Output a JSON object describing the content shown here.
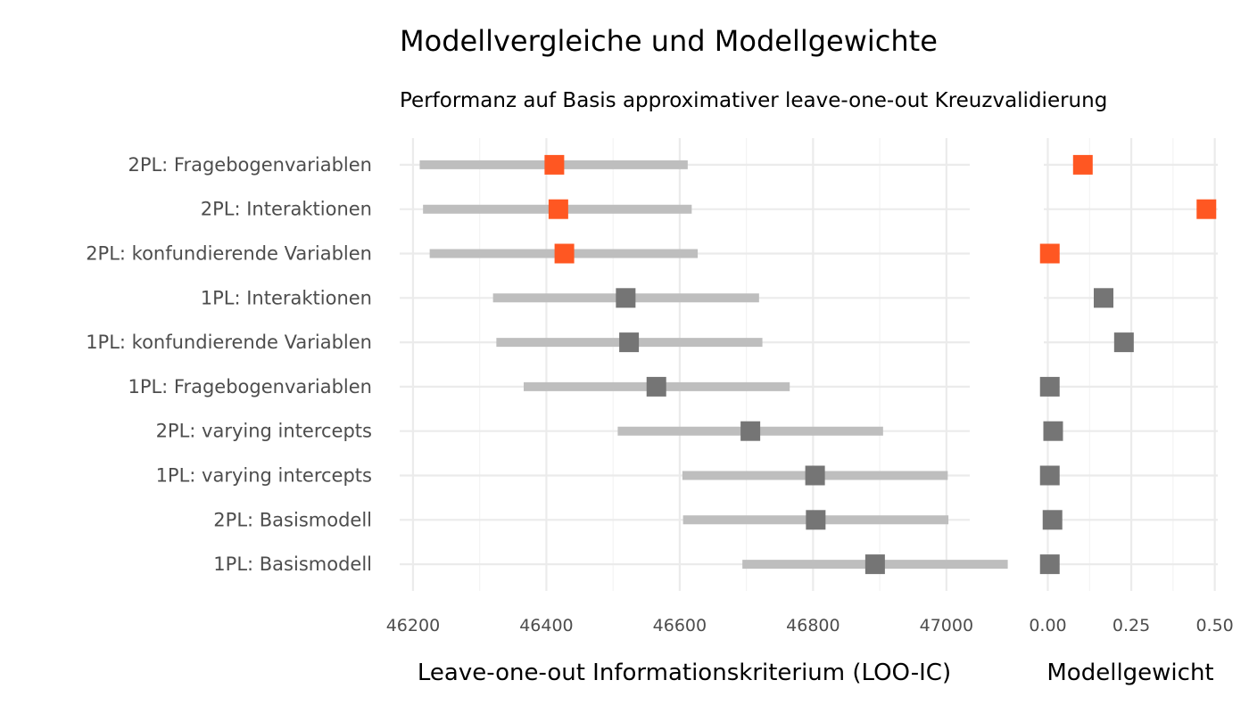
{
  "chart_data": {
    "type": "dot-interval",
    "title": "Modellvergleiche und Modellgewichte",
    "subtitle": "Performanz auf Basis approximativer leave-one-out Kreuzvalidierung",
    "categories": [
      "2PL: Fragebogenvariablen",
      "2PL: Interaktionen",
      "2PL: konfundierende Variablen",
      "1PL: Interaktionen",
      "1PL: konfundierende Variablen",
      "1PL: Fragebogenvariablen",
      "2PL: varying intercepts",
      "1PL: varying intercepts",
      "2PL: Basismodell",
      "1PL: Basismodell"
    ],
    "panels": [
      {
        "id": "looic",
        "xlabel": "Leave-one-out Informationskriterium (LOO-IC)",
        "xlim": [
          46180,
          47035
        ],
        "ticks": [
          46200,
          46400,
          46600,
          46800,
          47000
        ],
        "tick_labels": [
          "46200",
          "46400",
          "46600",
          "46800",
          "47000"
        ],
        "points": [
          {
            "estimate": 46412,
            "lower": 46210,
            "upper": 46612,
            "highlight": true
          },
          {
            "estimate": 46418,
            "lower": 46215,
            "upper": 46618,
            "highlight": true
          },
          {
            "estimate": 46427,
            "lower": 46225,
            "upper": 46627,
            "highlight": true
          },
          {
            "estimate": 46519,
            "lower": 46320,
            "upper": 46719,
            "highlight": false
          },
          {
            "estimate": 46524,
            "lower": 46325,
            "upper": 46724,
            "highlight": false
          },
          {
            "estimate": 46565,
            "lower": 46366,
            "upper": 46765,
            "highlight": false
          },
          {
            "estimate": 46706,
            "lower": 46507,
            "upper": 46905,
            "highlight": false
          },
          {
            "estimate": 46803,
            "lower": 46604,
            "upper": 47002,
            "highlight": false
          },
          {
            "estimate": 46804,
            "lower": 46605,
            "upper": 47003,
            "highlight": false
          },
          {
            "estimate": 46893,
            "lower": 46694,
            "upper": 47092,
            "highlight": false
          }
        ]
      },
      {
        "id": "weight",
        "xlabel": "Modellgewicht",
        "xlim": [
          -0.012,
          0.509
        ],
        "ticks": [
          0.0,
          0.25,
          0.5
        ],
        "tick_labels": [
          "0.00",
          "0.25",
          "0.50"
        ],
        "points": [
          {
            "estimate": 0.105,
            "highlight": true
          },
          {
            "estimate": 0.475,
            "highlight": true
          },
          {
            "estimate": 0.006,
            "highlight": true
          },
          {
            "estimate": 0.167,
            "highlight": false
          },
          {
            "estimate": 0.228,
            "highlight": false
          },
          {
            "estimate": 0.006,
            "highlight": false
          },
          {
            "estimate": 0.016,
            "highlight": false
          },
          {
            "estimate": 0.006,
            "highlight": false
          },
          {
            "estimate": 0.014,
            "highlight": false
          },
          {
            "estimate": 0.006,
            "highlight": false
          }
        ]
      }
    ],
    "grid": true,
    "colors": {
      "highlight": "#ff5722",
      "default": "#757575",
      "interval": "#bebebe"
    }
  }
}
